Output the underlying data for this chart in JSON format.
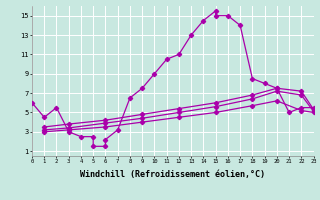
{
  "background_color": "#c8e8e0",
  "grid_color": "#b0d8d0",
  "line_color": "#aa00aa",
  "xlabel": "Windchill (Refroidissement éolien,°C)",
  "xlabel_fontsize": 6.0,
  "ytick_values": [
    1,
    3,
    5,
    7,
    9,
    11,
    13,
    15
  ],
  "xtick_values": [
    0,
    1,
    2,
    3,
    4,
    5,
    6,
    7,
    8,
    9,
    10,
    11,
    12,
    13,
    14,
    15,
    16,
    17,
    18,
    19,
    20,
    21,
    22,
    23
  ],
  "xlim": [
    0,
    23
  ],
  "ylim": [
    0.5,
    16.0
  ],
  "s1_x": [
    0,
    1,
    2,
    3,
    4,
    5,
    5,
    6,
    6,
    7,
    8,
    9,
    10,
    11,
    12,
    13,
    14,
    15,
    15,
    16,
    17,
    18,
    19,
    20,
    21,
    22,
    23
  ],
  "s1_y": [
    6.0,
    4.5,
    5.5,
    3.0,
    2.5,
    2.5,
    1.5,
    1.5,
    2.2,
    3.2,
    6.5,
    7.5,
    9.0,
    10.5,
    11.0,
    13.0,
    14.5,
    15.5,
    15.0,
    15.0,
    14.0,
    8.5,
    8.0,
    7.5,
    5.0,
    5.5,
    5.5
  ],
  "s2_x": [
    1,
    3,
    6,
    9,
    12,
    15,
    18,
    20,
    22,
    23
  ],
  "s2_y": [
    3.5,
    3.8,
    4.2,
    4.8,
    5.4,
    6.0,
    6.8,
    7.5,
    7.2,
    5.3
  ],
  "s3_x": [
    1,
    3,
    6,
    9,
    12,
    15,
    18,
    20,
    22,
    23
  ],
  "s3_y": [
    3.2,
    3.4,
    3.9,
    4.4,
    5.0,
    5.6,
    6.4,
    7.2,
    6.8,
    5.1
  ],
  "s4_x": [
    1,
    3,
    6,
    9,
    12,
    15,
    18,
    20,
    22,
    23
  ],
  "s4_y": [
    3.0,
    3.2,
    3.5,
    4.0,
    4.5,
    5.0,
    5.7,
    6.2,
    5.2,
    5.0
  ]
}
